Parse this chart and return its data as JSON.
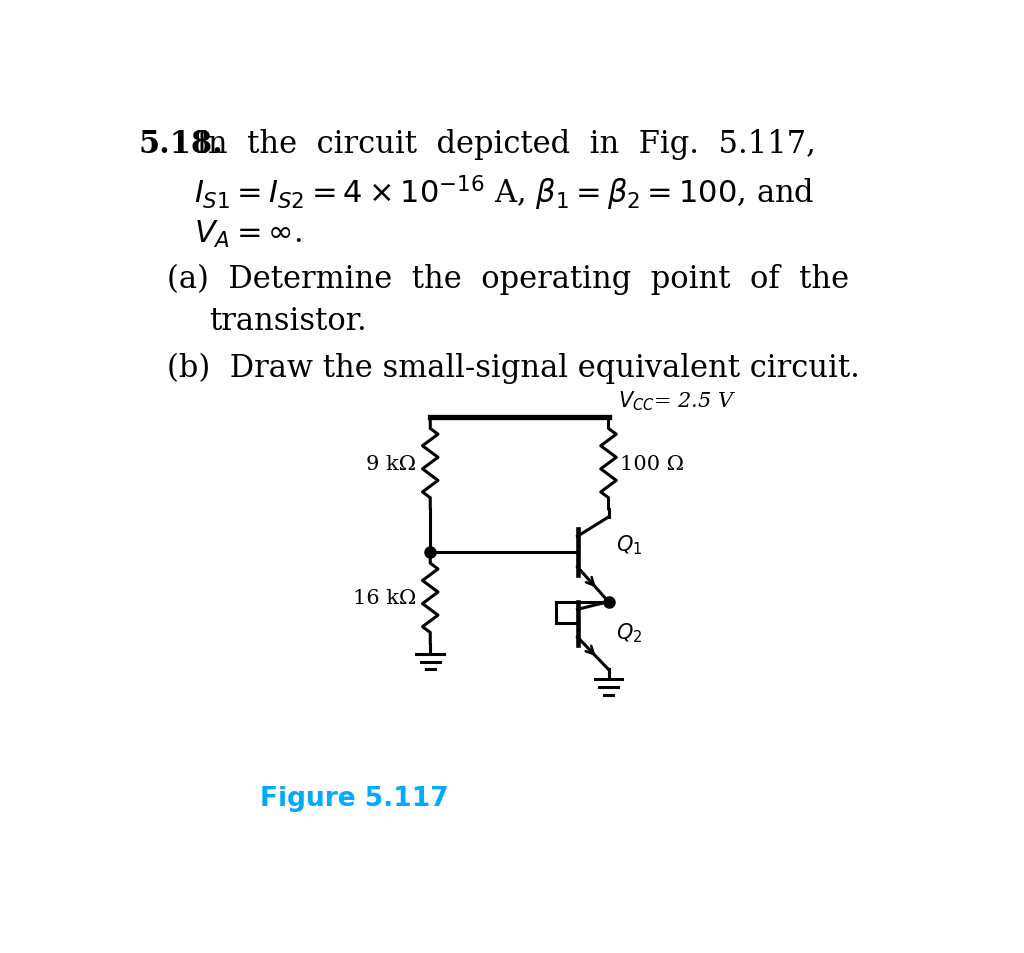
{
  "bg_color": "#ffffff",
  "text_color": "#000000",
  "fig_caption_color": "#00aaff",
  "r1_label": "9 kΩ",
  "r2_label": "100 Ω",
  "r3_label": "16 kΩ",
  "q1_label": "$Q_1$",
  "q2_label": "$Q_2$",
  "fig_caption": "Figure 5.117",
  "vcc_label": "$V_{CC}$= 2.5 V",
  "lw": 2.2,
  "lw_thick": 3.8,
  "resistor_amp": 0.1,
  "resistor_n_zags": 6
}
